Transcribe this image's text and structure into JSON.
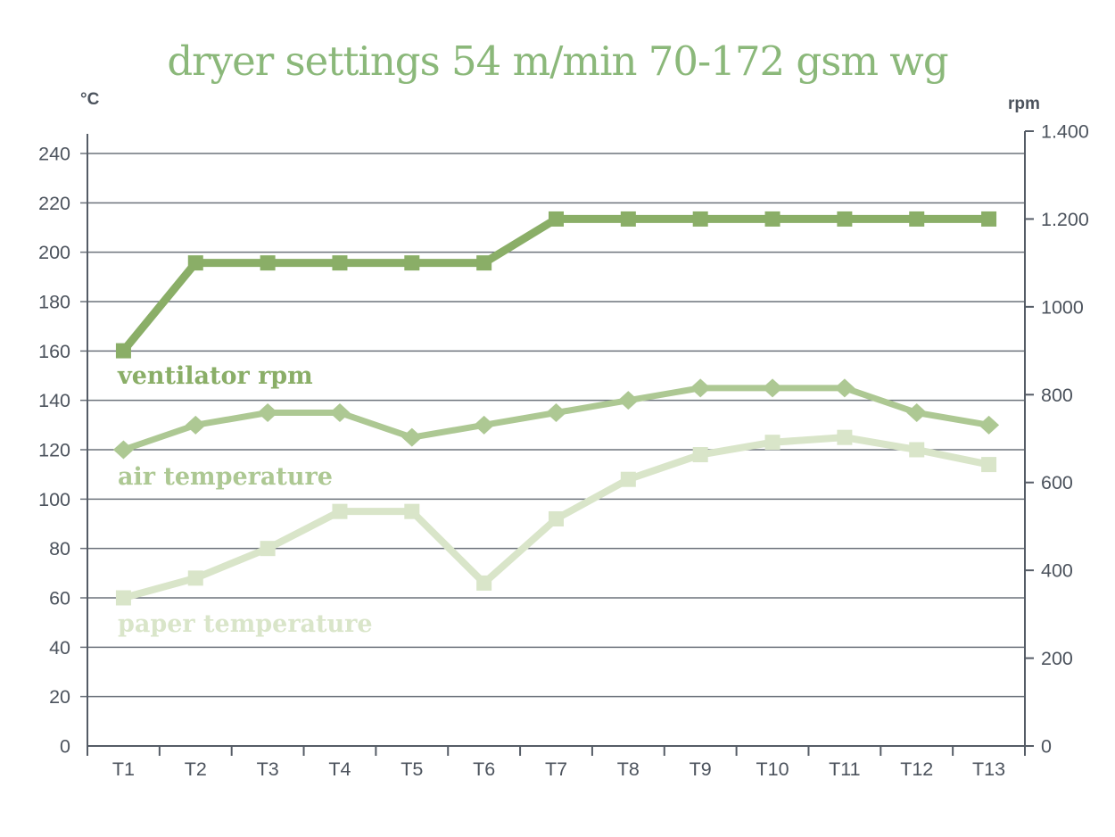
{
  "title": "dryer settings 54 m/min 70-172 gsm wg",
  "chart_data": {
    "type": "line",
    "title": "dryer settings 54 m/min 70-172 gsm wg",
    "categories": [
      "T1",
      "T2",
      "T3",
      "T4",
      "T5",
      "T6",
      "T7",
      "T8",
      "T9",
      "T10",
      "T11",
      "T12",
      "T13"
    ],
    "series": [
      {
        "name": "ventilator rpm",
        "axis": "right",
        "marker": "square",
        "color": "#8aae67",
        "values": [
          900,
          1100,
          1100,
          1100,
          1100,
          1100,
          1200,
          1200,
          1200,
          1200,
          1200,
          1200,
          1200
        ]
      },
      {
        "name": "air temperature",
        "axis": "left",
        "marker": "diamond",
        "color": "#adc893",
        "values": [
          120,
          130,
          135,
          135,
          125,
          130,
          135,
          140,
          145,
          145,
          145,
          135,
          130
        ]
      },
      {
        "name": "paper temperature",
        "axis": "left",
        "marker": "square",
        "color": "#d9e5c9",
        "values": [
          60,
          68,
          80,
          95,
          95,
          66,
          92,
          108,
          118,
          123,
          125,
          120,
          114
        ]
      }
    ],
    "left_axis": {
      "unit": "°C",
      "min": 0,
      "max": 250,
      "tick_step": 20,
      "tick_labels": [
        "0",
        "20",
        "40",
        "60",
        "80",
        "100",
        "120",
        "140",
        "160",
        "180",
        "200",
        "220",
        "240"
      ]
    },
    "right_axis": {
      "unit": "rpm",
      "min": 0,
      "max": 1400,
      "tick_step": 200,
      "tick_labels": [
        "0",
        "200",
        "400",
        "600",
        "800",
        "1000",
        "1.200",
        "1.400"
      ]
    },
    "grid": "horizontal gridlines every 20 °C",
    "legend": "inline series labels next to each line"
  },
  "colors": {
    "title_text": "#8bb87a",
    "axis_text": "#4c535d",
    "gridline": "#6d737c",
    "axis_line": "#555c66",
    "background": "#ffffff"
  }
}
